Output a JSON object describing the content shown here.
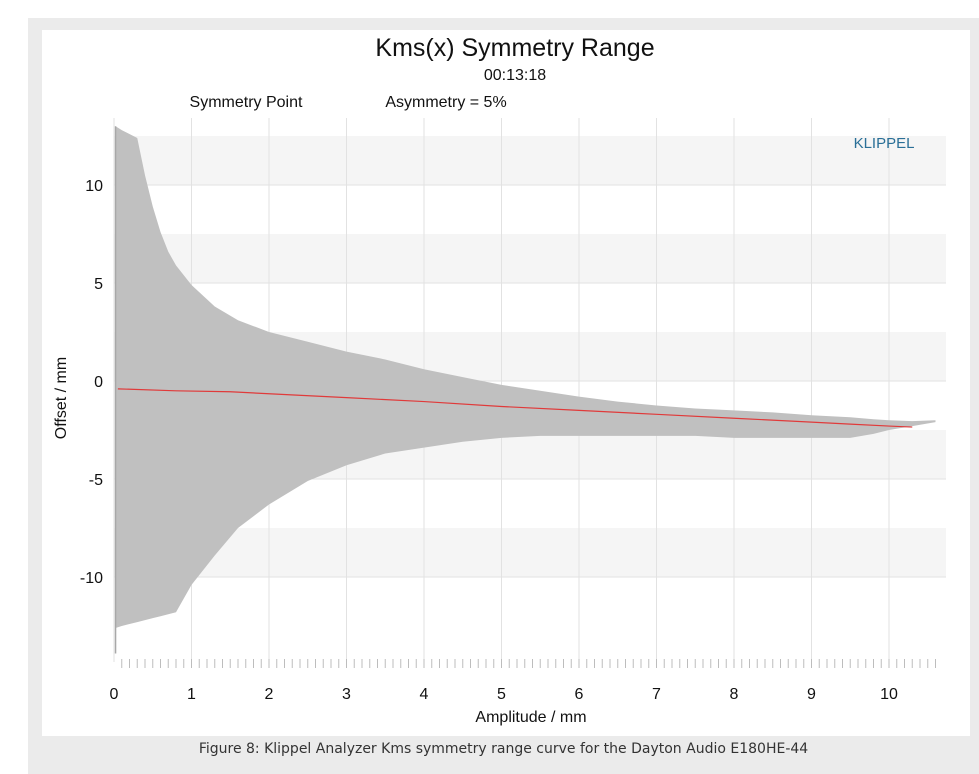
{
  "chart_data": {
    "type": "area",
    "title": "Kms(x) Symmetry Range",
    "subtitle": "00:13:18",
    "annotations": [
      "Symmetry Point",
      "Asymmetry = 5%"
    ],
    "brand": "KLIPPEL",
    "xlabel": "Amplitude / mm",
    "ylabel": "Offset / mm",
    "xlim": [
      0,
      10.7
    ],
    "ylim": [
      -14,
      13.5
    ],
    "x_ticks": [
      "0",
      "1",
      "2",
      "3",
      "4",
      "5",
      "6",
      "7",
      "8",
      "9",
      "10"
    ],
    "y_ticks": [
      {
        "value": 10,
        "label": "10"
      },
      {
        "value": 5,
        "label": "5"
      },
      {
        "value": 0,
        "label": "0"
      },
      {
        "value": -5,
        "label": "-5"
      },
      {
        "value": -10,
        "label": "-10"
      }
    ],
    "grid": true,
    "series": [
      {
        "name": "Symmetry Point",
        "type": "line",
        "color": "#e03a3a",
        "x": [
          0.05,
          0.8,
          1.5,
          2,
          3,
          4,
          5,
          6,
          7,
          8,
          9,
          9.5,
          10,
          10.3
        ],
        "y": [
          -0.4,
          -0.5,
          -0.55,
          -0.65,
          -0.85,
          -1.05,
          -1.3,
          -1.5,
          -1.7,
          -1.9,
          -2.1,
          -2.2,
          -2.3,
          -2.35
        ]
      },
      {
        "name": "Asymmetry = 5%",
        "type": "band",
        "color": "#c0c0c0",
        "x": [
          0.02,
          0.1,
          0.3,
          0.4,
          0.5,
          0.6,
          0.7,
          0.8,
          1,
          1.3,
          1.6,
          2,
          2.5,
          3,
          3.5,
          4,
          4.5,
          5,
          5.5,
          6,
          6.5,
          7,
          7.5,
          8,
          8.5,
          9,
          9.5,
          9.8,
          10,
          10.3,
          10.6
        ],
        "upper": [
          13,
          12.8,
          12.4,
          10.5,
          8.9,
          7.6,
          6.6,
          5.9,
          4.9,
          3.8,
          3.1,
          2.5,
          2,
          1.5,
          1.1,
          0.6,
          0.2,
          -0.2,
          -0.5,
          -0.8,
          -1.05,
          -1.25,
          -1.4,
          -1.5,
          -1.6,
          -1.75,
          -1.85,
          -1.95,
          -2,
          -2.05,
          -2
        ],
        "lower": [
          -12.6,
          -12.5,
          -12.3,
          -12.2,
          -12.1,
          -12,
          -11.9,
          -11.8,
          -10.4,
          -8.9,
          -7.5,
          -6.3,
          -5.1,
          -4.3,
          -3.7,
          -3.4,
          -3.1,
          -2.9,
          -2.8,
          -2.8,
          -2.8,
          -2.8,
          -2.8,
          -2.9,
          -2.9,
          -2.9,
          -2.9,
          -2.7,
          -2.5,
          -2.3,
          -2.1
        ]
      }
    ]
  },
  "caption": "Figure 8: Klippel Analyzer Kms symmetry range curve for the Dayton Audio E180HE-44"
}
